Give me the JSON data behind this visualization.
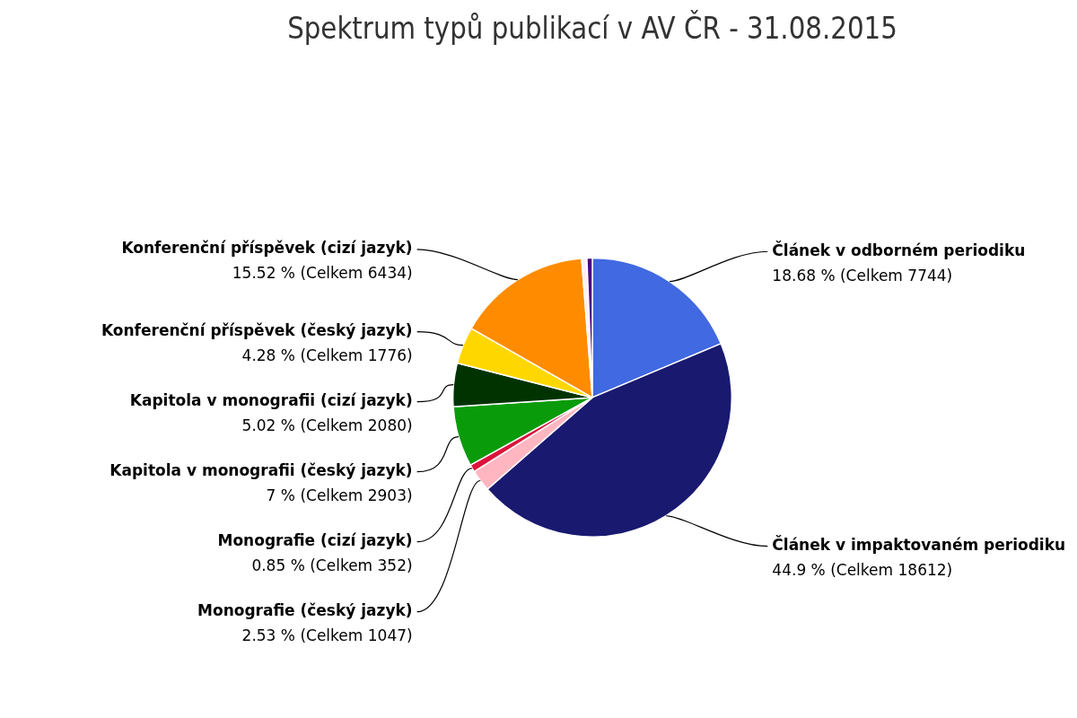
{
  "chart_data": {
    "type": "pie",
    "title": "Spektrum typů publikací v AV ČR - 31.08.2015",
    "categories": [
      "Článek v odborném periodiku",
      "Článek v impaktovaném periodiku",
      "Monografie (český jazyk)",
      "Monografie (cizí jazyk)",
      "Kapitola v monografii (český jazyk)",
      "Kapitola v monografii (cizí jazyk)",
      "Konferenční příspěvek (český jazyk)",
      "Konferenční příspěvek (cizí jazyk)",
      null,
      null
    ],
    "values": [
      7744,
      18612,
      1047,
      352,
      2903,
      2080,
      1776,
      6434,
      250,
      258
    ],
    "value_labels": [
      "18.68 % (Celkem 7744)",
      "44.9 % (Celkem 18612)",
      "2.53 % (Celkem 1047)",
      "0.85 % (Celkem 352)",
      "7 % (Celkem 2903)",
      "5.02 % (Celkem 2080)",
      "4.28 % (Celkem 1776)",
      "15.52 % (Celkem 6434)",
      null,
      null
    ],
    "colors": [
      "#4169e1",
      "#191970",
      "#ffb6c1",
      "#dc143c",
      "#0a9b0a",
      "#013301",
      "#ffd700",
      "#ff8c00",
      "#fff0f5",
      "#4b0082"
    ],
    "legend": false
  }
}
